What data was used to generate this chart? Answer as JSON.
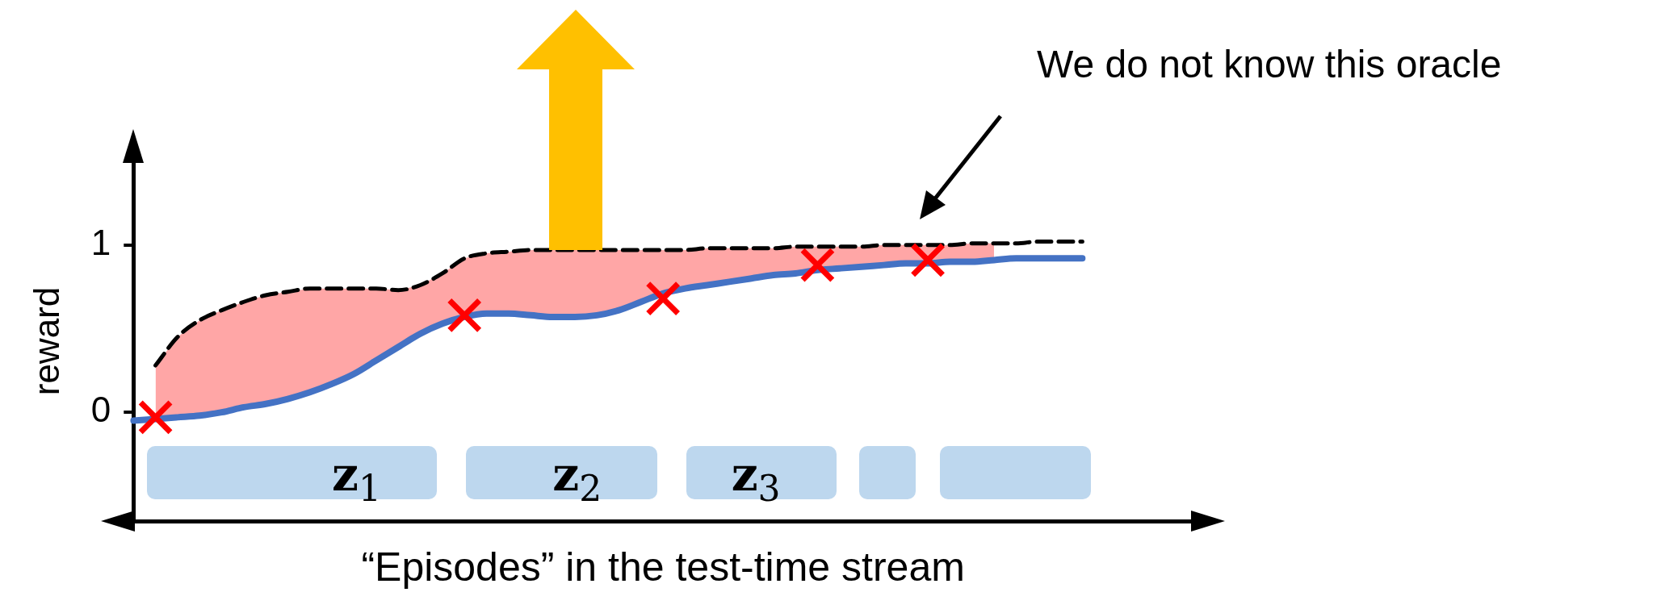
{
  "chart_data": {
    "type": "line",
    "xlabel": "“Episodes” in the test-time stream",
    "ylabel": "reward",
    "categories": [
      null,
      null,
      null,
      null,
      null,
      null,
      null,
      null,
      null,
      null,
      null,
      null,
      null,
      null,
      null,
      null,
      null,
      null,
      null,
      null,
      null,
      null,
      null,
      null,
      null,
      null,
      null,
      null,
      null,
      null,
      null,
      null,
      null,
      null,
      null,
      null,
      null,
      null,
      null,
      null,
      null,
      null,
      null,
      null,
      null,
      null,
      null,
      null,
      null
    ],
    "ylim": [
      -0.65,
      1.5
    ],
    "yticks": [
      0,
      1
    ],
    "tick_labels": "y",
    "grid": false,
    "legend": false,
    "series": [
      {
        "type": "line",
        "color": "#000000",
        "line_style": "dashed",
        "marker": "none",
        "values": [
          null,
          0.28,
          0.45,
          0.55,
          0.61,
          0.66,
          0.7,
          0.72,
          0.74,
          0.74,
          0.74,
          0.74,
          0.73,
          0.76,
          0.83,
          0.92,
          0.95,
          0.96,
          0.97,
          0.97,
          0.97,
          0.97,
          0.97,
          0.97,
          0.97,
          0.97,
          0.98,
          0.98,
          0.98,
          0.98,
          0.99,
          0.99,
          0.99,
          0.99,
          1.0,
          1.0,
          1.0,
          1.0,
          1.01,
          1.01,
          1.01,
          1.02,
          1.02,
          1.02,
          null,
          null,
          null,
          null,
          null
        ],
        "lower": [
          null,
          -0.04,
          -0.03,
          -0.02,
          0.0,
          0.03,
          0.05,
          0.08,
          0.12,
          0.17,
          0.23,
          0.31,
          0.39,
          0.47,
          0.53,
          0.57,
          0.59,
          0.59,
          0.58,
          0.57,
          0.57,
          0.58,
          0.61,
          0.66,
          0.71,
          0.74,
          0.76,
          0.78,
          0.8,
          0.82,
          0.83,
          0.85,
          0.86,
          0.87,
          0.88,
          0.89,
          0.89,
          0.9,
          0.9,
          0.91,
          null,
          null,
          null,
          null,
          null,
          null,
          null,
          null,
          null
        ],
        "upper": [
          null,
          0.28,
          0.45,
          0.55,
          0.61,
          0.66,
          0.7,
          0.72,
          0.74,
          0.74,
          0.74,
          0.74,
          0.73,
          0.76,
          0.83,
          0.92,
          0.95,
          0.96,
          0.97,
          0.97,
          0.97,
          0.97,
          0.97,
          0.97,
          0.97,
          0.97,
          0.98,
          0.98,
          0.98,
          0.98,
          0.99,
          0.99,
          0.99,
          0.99,
          1.0,
          1.0,
          1.0,
          1.0,
          1.01,
          1.01,
          null,
          null,
          null,
          null,
          null,
          null,
          null,
          null,
          null
        ]
      },
      {
        "type": "line",
        "color": "#4472c4",
        "line_style": "solid",
        "marker": "none",
        "values": [
          -0.05,
          -0.04,
          -0.03,
          -0.02,
          0.0,
          0.03,
          0.05,
          0.08,
          0.12,
          0.17,
          0.23,
          0.31,
          0.39,
          0.47,
          0.53,
          0.57,
          0.59,
          0.59,
          0.58,
          0.57,
          0.57,
          0.58,
          0.61,
          0.66,
          0.71,
          0.74,
          0.76,
          0.78,
          0.8,
          0.82,
          0.83,
          0.85,
          0.86,
          0.87,
          0.88,
          0.89,
          0.89,
          0.9,
          0.9,
          0.91,
          0.92,
          0.92,
          0.92,
          0.92,
          null,
          null,
          null,
          null,
          null
        ]
      },
      {
        "type": "scatter",
        "color": "#ff0000",
        "marker": "cross",
        "values": [
          null,
          -0.03,
          null,
          null,
          null,
          null,
          null,
          null,
          null,
          null,
          null,
          null,
          null,
          null,
          null,
          0.58,
          null,
          null,
          null,
          null,
          null,
          null,
          null,
          null,
          0.68,
          null,
          null,
          null,
          null,
          null,
          null,
          0.88,
          null,
          null,
          null,
          null,
          0.91,
          null,
          null,
          null,
          null,
          null,
          null,
          null,
          null,
          null,
          null,
          null,
          null
        ]
      }
    ],
    "annotations": [
      "We do not know this oracle",
      "z$_{1}$",
      "z$_{2}$",
      "z$_{3}$"
    ]
  }
}
